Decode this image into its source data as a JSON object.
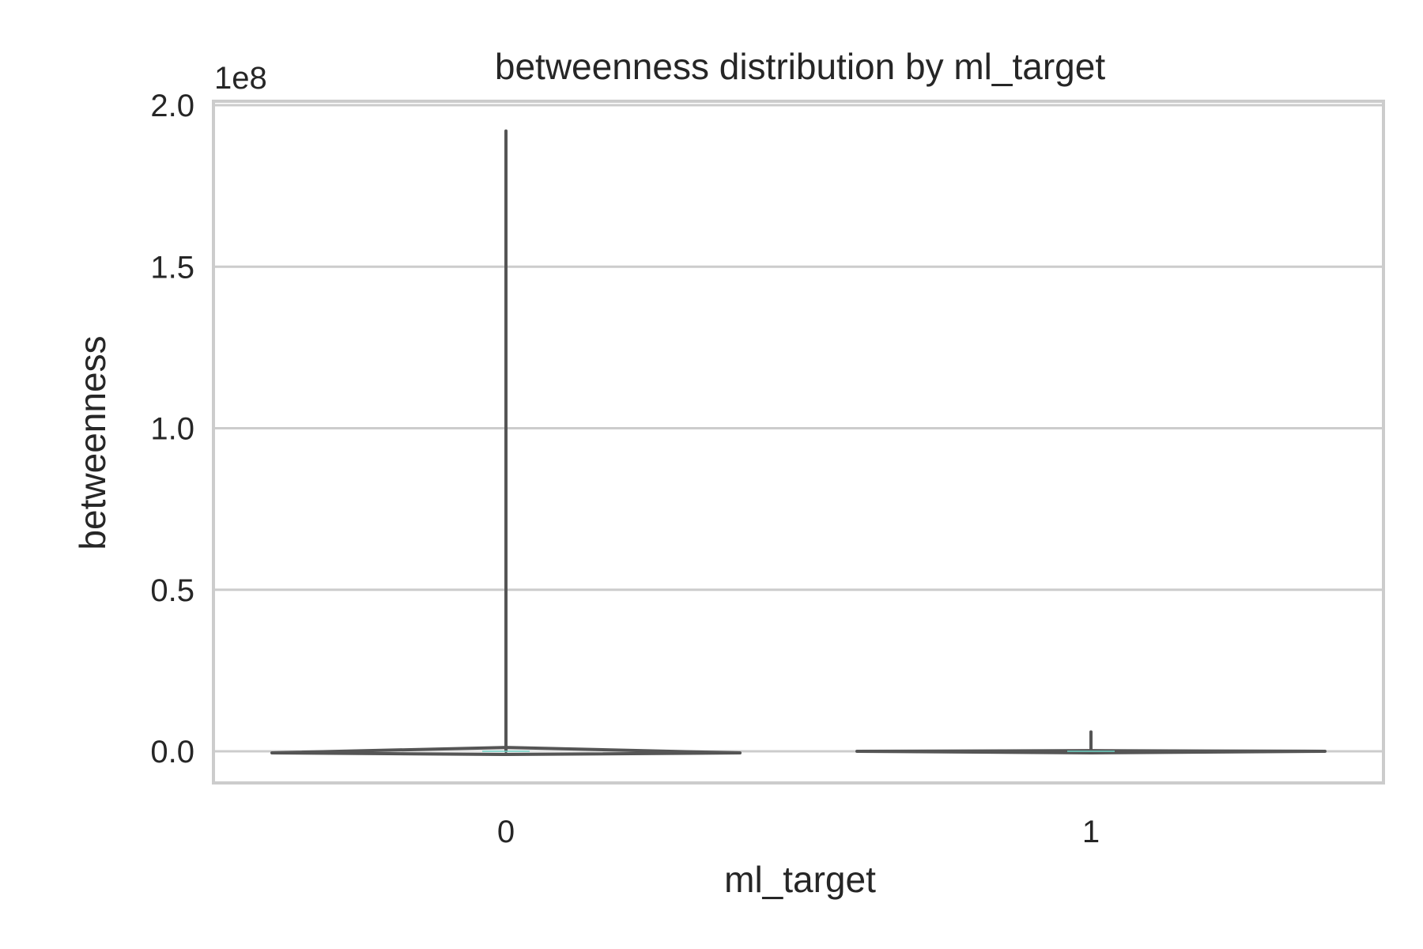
{
  "chart_data": {
    "type": "violin",
    "title": "betweenness distribution by ml_target",
    "xlabel": "ml_target",
    "ylabel": "betweenness",
    "y_offset_label": "1e8",
    "categories": [
      "0",
      "1"
    ],
    "yticks": [
      "0.0",
      "0.5",
      "1.0",
      "1.5",
      "2.0"
    ],
    "ylim": [
      -0.1,
      2.02
    ],
    "y_units": "1e8",
    "grid": "horizontal",
    "violins": [
      {
        "category": "0",
        "min": -0.005,
        "max": 1.92,
        "median": 0.0,
        "max_density_width": 0.012
      },
      {
        "category": "1",
        "min": 0.0,
        "max": 0.06,
        "median": 0.0,
        "max_density_width": 0.002
      }
    ],
    "colors": {
      "violin_line": "#555555",
      "grid": "#cccccc",
      "spine": "#cccccc",
      "median": "#6fd3c6"
    }
  }
}
